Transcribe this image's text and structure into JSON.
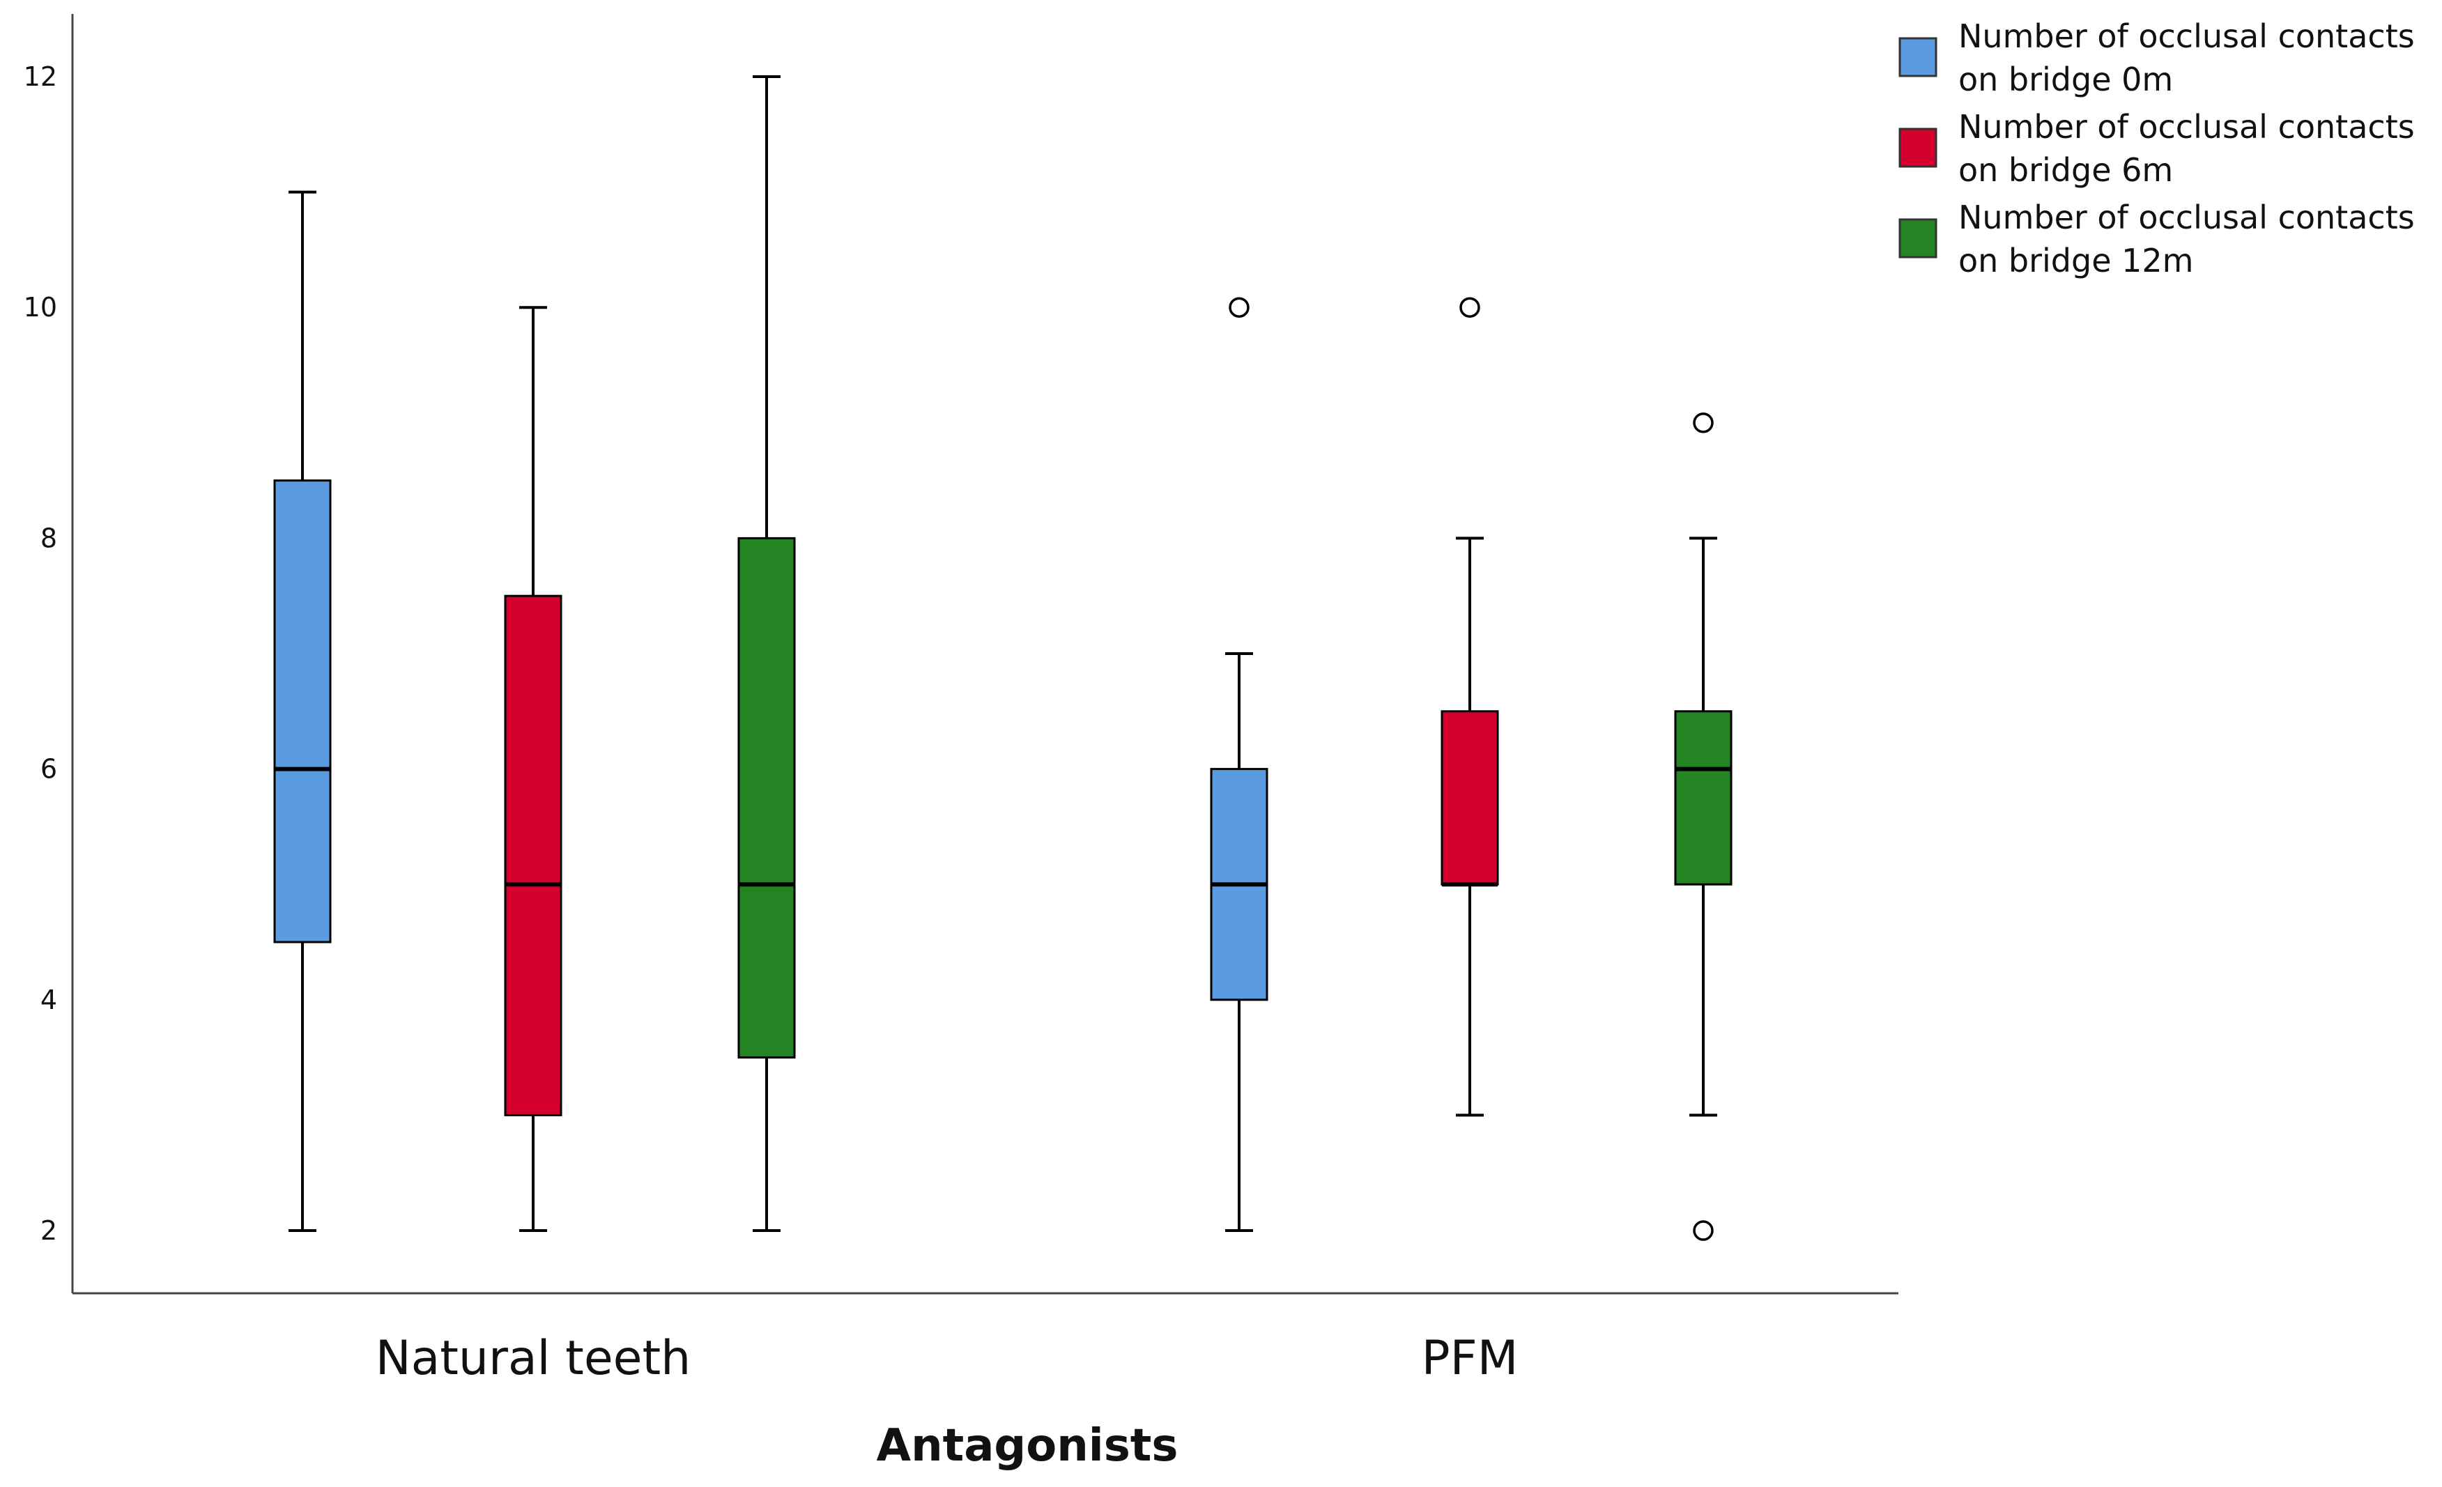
{
  "chart_data": {
    "type": "boxplot",
    "title": "",
    "xlabel": "Antagonists",
    "ylabel": "",
    "ylim": [
      1.5,
      12.4
    ],
    "yticks": [
      2,
      4,
      6,
      8,
      10,
      12
    ],
    "categories": [
      "Natural teeth",
      "PFM"
    ],
    "legend_position": "top-right",
    "series": [
      {
        "name": "Number of occlusal contacts on bridge 0m",
        "legend_lines": [
          "Number of occlusal contacts",
          "on bridge 0m"
        ],
        "color": "#5B9BE0",
        "boxes": [
          {
            "category": "Natural teeth",
            "whisker_low": 2,
            "q1": 4.5,
            "median": 6,
            "q3": 8.5,
            "whisker_high": 11,
            "outliers": []
          },
          {
            "category": "PFM",
            "whisker_low": 2,
            "q1": 4,
            "median": 5,
            "q3": 6,
            "whisker_high": 7,
            "outliers": [
              10
            ]
          }
        ]
      },
      {
        "name": "Number of occlusal contacts on bridge 6m",
        "legend_lines": [
          "Number of occlusal contacts",
          "on bridge 6m"
        ],
        "color": "#D6002E",
        "boxes": [
          {
            "category": "Natural teeth",
            "whisker_low": 2,
            "q1": 3,
            "median": 5,
            "q3": 7.5,
            "whisker_high": 10,
            "outliers": []
          },
          {
            "category": "PFM",
            "whisker_low": 3,
            "q1": 5,
            "median": 5,
            "q3": 6.5,
            "whisker_high": 8,
            "outliers": [
              10
            ]
          }
        ]
      },
      {
        "name": "Number of occlusal contacts on bridge 12m",
        "legend_lines": [
          "Number of occlusal contacts",
          "on bridge 12m"
        ],
        "color": "#248424",
        "boxes": [
          {
            "category": "Natural teeth",
            "whisker_low": 2,
            "q1": 3.5,
            "median": 5,
            "q3": 8,
            "whisker_high": 12,
            "outliers": []
          },
          {
            "category": "PFM",
            "whisker_low": 3,
            "q1": 5,
            "median": 6,
            "q3": 6.5,
            "whisker_high": 8,
            "outliers": [
              9,
              2
            ]
          }
        ]
      }
    ]
  }
}
